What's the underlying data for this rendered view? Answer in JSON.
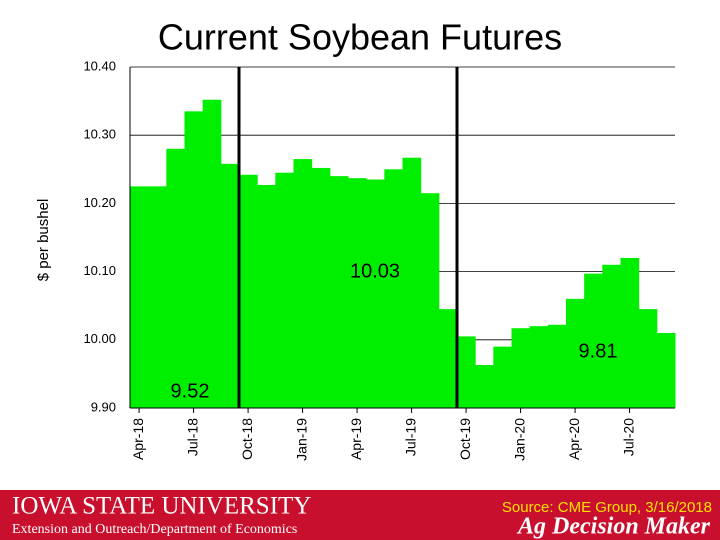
{
  "chart_data": {
    "type": "bar",
    "title": "Current Soybean Futures",
    "y_label": "$ per bushel",
    "categories": [
      "Apr-18",
      null,
      null,
      "Jul-18",
      null,
      null,
      "Oct-18",
      null,
      null,
      "Jan-19",
      null,
      null,
      "Apr-19",
      null,
      null,
      "Jul-19",
      null,
      null,
      "Oct-19",
      null,
      null,
      "Jan-20",
      null,
      null,
      "Apr-20",
      null,
      null,
      "Jul-20",
      null,
      null
    ],
    "values": [
      10.225,
      10.225,
      10.28,
      10.335,
      10.352,
      10.258,
      10.242,
      10.227,
      10.245,
      10.265,
      10.252,
      10.24,
      10.237,
      10.235,
      10.25,
      10.267,
      10.215,
      10.045,
      10.005,
      9.963,
      9.99,
      10.017,
      10.02,
      10.022,
      10.06,
      10.097,
      10.11,
      10.12,
      10.045,
      10.01
    ],
    "color": "#00ee00",
    "ylim": [
      9.9,
      10.4
    ],
    "yticks": [
      {
        "value": 9.9,
        "label": "9.90"
      },
      {
        "value": 10,
        "label": "10.00"
      },
      {
        "value": 10.1,
        "label": "10.10"
      },
      {
        "value": 10.2,
        "label": "10.20"
      },
      {
        "value": 10.3,
        "label": "10.30"
      },
      {
        "value": 10.4,
        "label": "10.40"
      }
    ],
    "grid": true,
    "annotations": [
      "10.03",
      "9.81",
      "9.52"
    ]
  },
  "footer": {
    "university": "Iowa State University",
    "department": "Extension and Outreach/Department of Economics",
    "source": "Source: CME Group, 3/16/2018",
    "brand": "Ag Decision Maker"
  }
}
